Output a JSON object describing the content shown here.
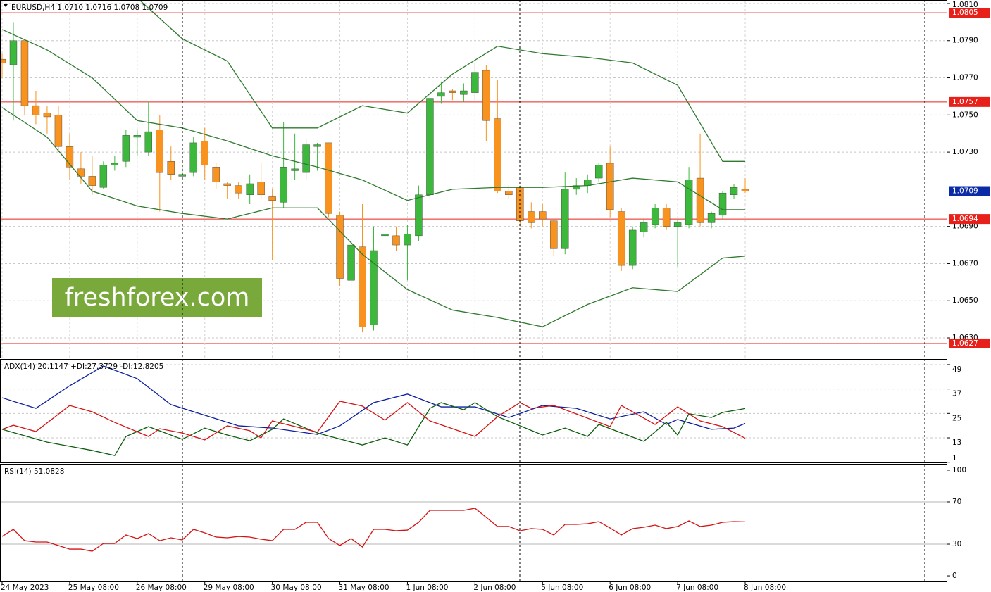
{
  "chart_data": [
    {
      "type": "candlestick",
      "title": "EURUSD,H4  1.0710 1.0716 1.0708 1.0709",
      "watermark": "freshforex.com",
      "categories": [
        "24 May 2023",
        null,
        null,
        null,
        null,
        null,
        "25 May 08:00",
        null,
        null,
        null,
        null,
        null,
        "26 May 08:00",
        null,
        null,
        null,
        null,
        null,
        "29 May 08:00",
        null,
        null,
        null,
        null,
        null,
        "30 May 08:00",
        null,
        null,
        null,
        null,
        null,
        "31 May 08:00",
        null,
        null,
        null,
        null,
        null,
        "1 Jun 08:00",
        null,
        null,
        null,
        null,
        null,
        "2 Jun 08:00",
        null,
        null,
        null,
        null,
        null,
        "5 Jun 08:00",
        null,
        null,
        null,
        null,
        null,
        "6 Jun 08:00",
        null,
        null,
        null,
        null,
        null,
        "7 Jun 08:00",
        null,
        null,
        null,
        null,
        null,
        "8 Jun 08:00"
      ],
      "open": [
        1.078,
        1.0777,
        1.079,
        1.0755,
        1.0751,
        1.075,
        1.0733,
        1.0721,
        1.0717,
        1.0711,
        1.0723,
        1.0725,
        1.0738,
        1.073,
        1.0742,
        1.0725,
        1.0717,
        1.0719,
        1.0736,
        1.0722,
        1.0713,
        1.0712,
        1.0707,
        1.0714,
        1.0706,
        1.0703,
        1.072,
        1.0719,
        1.0733,
        1.0735,
        1.0696,
        1.0661,
        1.0679,
        1.0637,
        1.0685,
        1.0685,
        1.068,
        1.0685,
        1.0707,
        1.076,
        1.0763,
        1.0761,
        1.0762,
        1.0774,
        1.0748,
        1.0709,
        1.0711,
        1.0698,
        1.0698,
        1.0693,
        1.0678,
        1.071,
        1.0712,
        1.0716,
        1.0724,
        1.0698,
        1.0669,
        1.0687,
        1.0691,
        1.07,
        1.069,
        1.0691,
        1.0716,
        1.0692,
        1.0696,
        1.0707,
        1.071
      ],
      "high": [
        1.0783,
        1.08,
        1.079,
        1.0763,
        1.0755,
        1.0755,
        1.074,
        1.073,
        1.0728,
        1.0725,
        1.0728,
        1.0742,
        1.0742,
        1.0757,
        1.075,
        1.0733,
        1.0722,
        1.0738,
        1.0743,
        1.0724,
        1.0714,
        1.0714,
        1.0718,
        1.0724,
        1.071,
        1.0746,
        1.074,
        1.0737,
        1.0735,
        1.0735,
        1.0698,
        1.0683,
        1.0702,
        1.069,
        1.0688,
        1.069,
        1.0691,
        1.0712,
        1.0762,
        1.0768,
        1.0764,
        1.0767,
        1.0778,
        1.0777,
        1.0769,
        1.0712,
        1.0712,
        1.0703,
        1.0702,
        1.0694,
        1.0719,
        1.0716,
        1.0718,
        1.0724,
        1.0733,
        1.07,
        1.069,
        1.0694,
        1.0702,
        1.0702,
        1.0694,
        1.0722,
        1.074,
        1.0698,
        1.0709,
        1.0713,
        1.0716
      ],
      "low": [
        1.077,
        1.0747,
        1.075,
        1.0745,
        1.074,
        1.073,
        1.0715,
        1.0713,
        1.0707,
        1.071,
        1.072,
        1.0722,
        1.0728,
        1.0728,
        1.0698,
        1.0715,
        1.0715,
        1.0717,
        1.0715,
        1.071,
        1.0705,
        1.0705,
        1.0702,
        1.0705,
        1.0672,
        1.07,
        1.0715,
        1.0715,
        1.072,
        1.0695,
        1.0658,
        1.0657,
        1.0633,
        1.0634,
        1.0682,
        1.0677,
        1.0661,
        1.0682,
        1.0705,
        1.0756,
        1.0758,
        1.0757,
        1.0758,
        1.0736,
        1.0708,
        1.0705,
        1.069,
        1.0689,
        1.069,
        1.0674,
        1.0675,
        1.0707,
        1.0708,
        1.0714,
        1.0695,
        1.0666,
        1.0667,
        1.0684,
        1.0689,
        1.0688,
        1.0668,
        1.0689,
        1.069,
        1.0689,
        1.0694,
        1.0705,
        1.0708
      ],
      "close": [
        1.0778,
        1.079,
        1.0755,
        1.075,
        1.0749,
        1.0733,
        1.0722,
        1.0717,
        1.0712,
        1.0723,
        1.0724,
        1.0739,
        1.0739,
        1.0741,
        1.0719,
        1.0718,
        1.0718,
        1.0735,
        1.0723,
        1.0714,
        1.0712,
        1.0708,
        1.0713,
        1.0707,
        1.0704,
        1.0722,
        1.0721,
        1.0734,
        1.0734,
        1.0697,
        1.0662,
        1.068,
        1.0636,
        1.0677,
        1.0686,
        1.068,
        1.0686,
        1.0707,
        1.0759,
        1.0762,
        1.0762,
        1.0763,
        1.0773,
        1.0747,
        1.0709,
        1.0707,
        1.0693,
        1.0692,
        1.0694,
        1.0678,
        1.071,
        1.0712,
        1.0715,
        1.0723,
        1.0699,
        1.0669,
        1.0688,
        1.0692,
        1.07,
        1.069,
        1.0692,
        1.0715,
        1.0692,
        1.0697,
        1.0708,
        1.0711,
        1.0709
      ],
      "up_color": "#3cb83c",
      "down_color": "#f7931e",
      "bands": [
        {
          "color": "#2f7a2f",
          "x": [
            0,
            4,
            8,
            12,
            16,
            20,
            24,
            28,
            32,
            36,
            40,
            44,
            48,
            52,
            56,
            60,
            64,
            66
          ],
          "values": [
            null,
            null,
            null,
            1.0813,
            1.0791,
            1.0779,
            1.0743,
            1.0743,
            1.0755,
            1.0751,
            1.0772,
            1.0787,
            1.0783,
            1.0781,
            1.0778,
            1.0766,
            1.0725,
            1.0725
          ]
        },
        {
          "color": "#2f7a2f",
          "x": [
            0,
            4,
            8,
            12,
            16,
            20,
            24,
            28,
            32,
            36,
            40,
            44,
            48,
            52,
            56,
            60,
            64,
            66
          ],
          "values": [
            1.0796,
            1.0785,
            1.077,
            1.0747,
            1.0743,
            1.0736,
            1.0728,
            1.0722,
            1.0715,
            1.0704,
            1.071,
            1.0711,
            1.0711,
            1.0712,
            1.0716,
            1.0714,
            1.0699,
            1.0699
          ]
        },
        {
          "color": "#2f7a2f",
          "x": [
            0,
            4,
            8,
            12,
            16,
            20,
            24,
            28,
            32,
            36,
            40,
            44,
            48,
            52,
            56,
            60,
            64,
            66
          ],
          "values": [
            1.0754,
            1.0738,
            1.0709,
            1.0701,
            1.0697,
            1.0694,
            1.07,
            1.07,
            1.0675,
            1.0656,
            1.0645,
            1.0641,
            1.0636,
            1.0648,
            1.0657,
            1.0655,
            1.0673,
            1.0674
          ]
        }
      ],
      "levels": [
        1.0805,
        1.0757,
        1.0694,
        1.0627
      ],
      "level_color": "#e8201a",
      "last_price": 1.0709,
      "last_price_color": "#0a2aa6",
      "ylim": [
        1.06194,
        1.08115
      ],
      "yticks": [
        {
          "value": 1.081,
          "label": "1.0810"
        },
        {
          "value": 1.079,
          "label": "1.0790"
        },
        {
          "value": 1.077,
          "label": "1.0770"
        },
        {
          "value": 1.075,
          "label": "1.0750"
        },
        {
          "value": 1.073,
          "label": "1.0730"
        },
        {
          "value": 1.069,
          "label": "1.0690"
        },
        {
          "value": 1.067,
          "label": "1.0670"
        },
        {
          "value": 1.065,
          "label": "1.0650"
        },
        {
          "value": 1.063,
          "label": "1.0630"
        }
      ],
      "grid": true
    },
    {
      "type": "line",
      "title": "ADX(14) 20.1147 +DI:27.3729 -DI:12.8205",
      "series": [
        {
          "color": "#0b1fa0",
          "x": [
            0,
            3,
            6,
            9,
            12,
            15,
            18,
            21,
            24,
            28,
            30,
            33,
            36,
            39,
            42,
            45,
            48,
            51,
            54,
            57,
            59,
            60,
            63,
            65,
            66
          ],
          "values": [
            32.7,
            27.5,
            38.6,
            48.3,
            42.1,
            29.3,
            24.1,
            18.9,
            17.8,
            14.7,
            18.9,
            30.3,
            34.5,
            28.2,
            28.2,
            23,
            28.9,
            27.5,
            22.3,
            25.8,
            19.6,
            22,
            17.2,
            17.8,
            20.1
          ]
        },
        {
          "color": "#0e5e0e",
          "x": [
            0,
            4,
            8,
            10,
            11,
            13,
            16,
            18,
            20,
            22,
            24,
            25,
            28,
            32,
            34,
            36,
            38,
            39,
            41,
            42,
            44,
            48,
            50,
            52,
            53,
            57,
            59,
            60,
            61,
            63,
            64,
            66
          ],
          "values": [
            17.2,
            10.9,
            6.8,
            4.3,
            13.7,
            18.5,
            12.3,
            17.8,
            14.4,
            11.6,
            17.2,
            22.3,
            15.4,
            9.5,
            13,
            9.5,
            27.5,
            30.3,
            26.8,
            30.3,
            23.4,
            14.4,
            17.8,
            13.7,
            19.6,
            11.3,
            20.6,
            14.4,
            24.8,
            23,
            25.5,
            27.4
          ]
        },
        {
          "color": "#d41414",
          "x": [
            0,
            1,
            3,
            6,
            8,
            10,
            13,
            14,
            16,
            18,
            20,
            22,
            23,
            24,
            28,
            30,
            32,
            34,
            36,
            38,
            42,
            44,
            46,
            47,
            49,
            54,
            55,
            58,
            60,
            62,
            64,
            66
          ],
          "values": [
            17.2,
            19.2,
            16.1,
            28.9,
            25.8,
            20.6,
            13.7,
            17.5,
            15.4,
            12,
            18.9,
            16.5,
            13,
            21.3,
            15.8,
            31,
            28.6,
            21.7,
            30.3,
            21.3,
            13.7,
            23.4,
            30.3,
            27.5,
            28.9,
            18.5,
            28.9,
            19.6,
            28.2,
            21.3,
            18.5,
            12.8
          ]
        }
      ],
      "ylim": [
        0.9,
        51.4
      ],
      "yticks": [
        49,
        37,
        25,
        13,
        1
      ],
      "grid": true
    },
    {
      "type": "line",
      "title": "RSI(14) 51.0828",
      "series": [
        {
          "color": "#d41414",
          "values": [
            37.3,
            44,
            33.3,
            32,
            32,
            28.7,
            25.3,
            25.3,
            23.3,
            30.7,
            30.7,
            38.7,
            35.3,
            40,
            33.3,
            36,
            34,
            44,
            40.7,
            36.7,
            36,
            37.3,
            36.7,
            34.7,
            33.3,
            44,
            44,
            50.7,
            50.7,
            35.3,
            28.7,
            35.3,
            27.3,
            44,
            44,
            42.7,
            43.3,
            50.7,
            62,
            62,
            62,
            62,
            64,
            55.3,
            46.7,
            46.7,
            42.7,
            44.7,
            44,
            38.7,
            48.7,
            48.7,
            49.3,
            51.3,
            45.3,
            38.7,
            44.7,
            46,
            48,
            44.7,
            46.7,
            52,
            46.7,
            48,
            50.7,
            51.3,
            51.1
          ]
        }
      ],
      "levels": [
        70,
        30
      ],
      "level_color": "#b4b4b4",
      "ylim": [
        -5.3,
        105.3
      ],
      "yticks": [
        100,
        70,
        30,
        0
      ],
      "grid": false
    }
  ]
}
